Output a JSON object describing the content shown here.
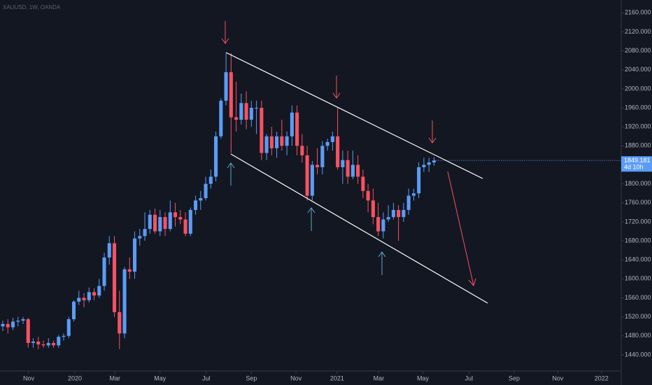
{
  "chart_data": {
    "type": "candlestick",
    "title": "XAUUSD, 1W, OANDA",
    "open": [
      1500,
      1505,
      1498,
      1510,
      1512,
      1515,
      1465,
      1468,
      1462,
      1460,
      1465,
      1460,
      1478,
      1480,
      1515,
      1552,
      1560,
      1555,
      1572,
      1565,
      1585,
      1645,
      1675,
      1530,
      1485,
      1620,
      1615,
      1685,
      1690,
      1705,
      1735,
      1700,
      1730,
      1705,
      1740,
      1730,
      1725,
      1695,
      1745,
      1765,
      1770,
      1800,
      1815,
      1900,
      1975,
      2035,
      1940,
      1935,
      1970,
      1935,
      1960,
      1960,
      1865,
      1900,
      1875,
      1900,
      1880,
      1900,
      1950,
      1880,
      1860,
      1775,
      1840,
      1835,
      1880,
      1888,
      1900,
      1835,
      1850,
      1815,
      1840,
      1815,
      1785,
      1765,
      1730,
      1700,
      1725,
      1730,
      1745,
      1730,
      1745,
      1775,
      1780,
      1835,
      1840,
      1845
    ],
    "high": [
      1512,
      1515,
      1518,
      1520,
      1520,
      1518,
      1475,
      1478,
      1470,
      1475,
      1470,
      1482,
      1485,
      1520,
      1555,
      1575,
      1570,
      1582,
      1580,
      1600,
      1655,
      1690,
      1690,
      1575,
      1625,
      1645,
      1700,
      1705,
      1740,
      1745,
      1748,
      1745,
      1740,
      1765,
      1760,
      1745,
      1740,
      1750,
      1775,
      1785,
      1815,
      1830,
      1910,
      1980,
      2075,
      2075,
      2015,
      1990,
      1995,
      1975,
      1975,
      1975,
      1905,
      1920,
      1910,
      1935,
      1910,
      1965,
      1965,
      1905,
      1880,
      1848,
      1875,
      1890,
      1895,
      1910,
      1960,
      1870,
      1870,
      1870,
      1860,
      1830,
      1800,
      1790,
      1760,
      1740,
      1755,
      1760,
      1755,
      1760,
      1790,
      1790,
      1845,
      1855,
      1855,
      1856
    ],
    "low": [
      1490,
      1485,
      1492,
      1500,
      1505,
      1455,
      1455,
      1452,
      1455,
      1455,
      1455,
      1455,
      1470,
      1475,
      1510,
      1545,
      1540,
      1550,
      1555,
      1560,
      1575,
      1630,
      1520,
      1452,
      1475,
      1600,
      1600,
      1670,
      1680,
      1695,
      1695,
      1690,
      1690,
      1700,
      1710,
      1715,
      1690,
      1690,
      1735,
      1745,
      1765,
      1790,
      1805,
      1895,
      1965,
      1865,
      1910,
      1925,
      1915,
      1920,
      1905,
      1850,
      1850,
      1860,
      1855,
      1870,
      1860,
      1880,
      1860,
      1845,
      1765,
      1765,
      1820,
      1820,
      1870,
      1870,
      1830,
      1800,
      1800,
      1810,
      1800,
      1770,
      1740,
      1715,
      1690,
      1685,
      1720,
      1725,
      1680,
      1720,
      1735,
      1765,
      1770,
      1825,
      1825,
      1838
    ],
    "close": [
      1505,
      1498,
      1510,
      1512,
      1515,
      1465,
      1468,
      1462,
      1460,
      1465,
      1460,
      1478,
      1480,
      1515,
      1552,
      1560,
      1555,
      1572,
      1565,
      1585,
      1645,
      1675,
      1530,
      1485,
      1620,
      1615,
      1685,
      1690,
      1705,
      1735,
      1700,
      1730,
      1705,
      1740,
      1730,
      1725,
      1695,
      1745,
      1765,
      1770,
      1800,
      1815,
      1900,
      1975,
      2035,
      1940,
      1935,
      1970,
      1935,
      1960,
      1960,
      1865,
      1900,
      1875,
      1900,
      1880,
      1900,
      1950,
      1880,
      1860,
      1775,
      1840,
      1835,
      1880,
      1888,
      1900,
      1835,
      1850,
      1815,
      1840,
      1815,
      1785,
      1765,
      1730,
      1700,
      1725,
      1730,
      1745,
      1730,
      1745,
      1775,
      1780,
      1835,
      1840,
      1845,
      1849.181
    ],
    "up_color": "#5b9cf6",
    "down_color": "#f7525f",
    "xlim": [
      -0.55,
      121.9
    ],
    "xticks": [
      {
        "value": 5.1,
        "label": "Nov"
      },
      {
        "value": 14.2,
        "label": "2020"
      },
      {
        "value": 22.1,
        "label": "Mar"
      },
      {
        "value": 31.0,
        "label": "May"
      },
      {
        "value": 40.1,
        "label": "Jul"
      },
      {
        "value": 49.0,
        "label": "Sep"
      },
      {
        "value": 57.8,
        "label": "Nov"
      },
      {
        "value": 65.9,
        "label": "2021"
      },
      {
        "value": 74.1,
        "label": "Mar"
      },
      {
        "value": 82.8,
        "label": "May"
      },
      {
        "value": 91.9,
        "label": "Jul"
      },
      {
        "value": 100.8,
        "label": "Sep"
      },
      {
        "value": 109.4,
        "label": "Nov"
      },
      {
        "value": 118.0,
        "label": "2022"
      }
    ],
    "ylim": [
      1406,
      2187
    ],
    "yticks": [
      {
        "value": 1440,
        "label": "1440.000"
      },
      {
        "value": 1480,
        "label": "1480.000"
      },
      {
        "value": 1520,
        "label": "1520.000"
      },
      {
        "value": 1560,
        "label": "1560.000"
      },
      {
        "value": 1600,
        "label": "1600.000"
      },
      {
        "value": 1640,
        "label": "1640.000"
      },
      {
        "value": 1680,
        "label": "1680.000"
      },
      {
        "value": 1720,
        "label": "1720.000"
      },
      {
        "value": 1760,
        "label": "1760.000"
      },
      {
        "value": 1800,
        "label": "1800.000"
      },
      {
        "value": 1840,
        "label": "1840.000"
      },
      {
        "value": 1880,
        "label": "1880.000"
      },
      {
        "value": 1920,
        "label": "1920.000"
      },
      {
        "value": 1960,
        "label": "1960.000"
      },
      {
        "value": 2000,
        "label": "2000.000"
      },
      {
        "value": 2040,
        "label": "2040.000"
      },
      {
        "value": 2080,
        "label": "2080.000"
      },
      {
        "value": 2120,
        "label": "2120.000"
      },
      {
        "value": 2160,
        "label": "2160.000"
      }
    ],
    "countdown": "4d 10h"
  }
}
